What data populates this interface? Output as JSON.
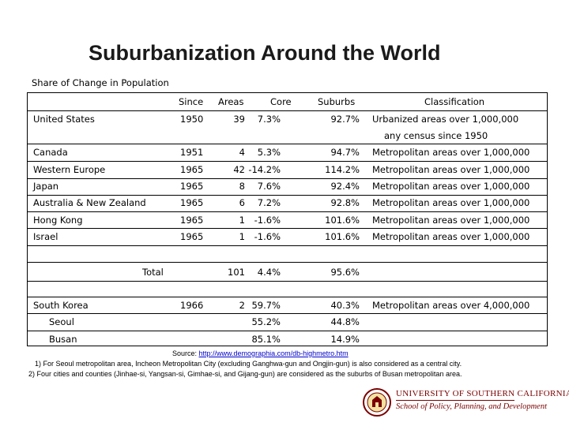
{
  "title": "Suburbanization Around the World",
  "subtitle": "Share of Change in Population",
  "columns": [
    "Since",
    "Areas",
    "Core",
    "Suburbs",
    "Classification"
  ],
  "rows": [
    {
      "country": "United States",
      "since": "1950",
      "areas": "39",
      "core": "7.3%",
      "suburbs": "92.7%",
      "classification": "Urbanized areas over 1,000,000",
      "classification_line2": "any census since 1950"
    },
    {
      "country": "Canada",
      "since": "1951",
      "areas": "4",
      "core": "5.3%",
      "suburbs": "94.7%",
      "classification": "Metropolitan areas over 1,000,000"
    },
    {
      "country": "Western Europe",
      "since": "1965",
      "areas": "42",
      "core": "-14.2%",
      "suburbs": "114.2%",
      "classification": "Metropolitan areas over 1,000,000"
    },
    {
      "country": "Japan",
      "since": "1965",
      "areas": "8",
      "core": "7.6%",
      "suburbs": "92.4%",
      "classification": "Metropolitan areas over 1,000,000"
    },
    {
      "country": "Australia & New Zealand",
      "since": "1965",
      "areas": "6",
      "core": "7.2%",
      "suburbs": "92.8%",
      "classification": "Metropolitan areas over 1,000,000"
    },
    {
      "country": "Hong Kong",
      "since": "1965",
      "areas": "1",
      "core": "-1.6%",
      "suburbs": "101.6%",
      "classification": "Metropolitan areas over 1,000,000"
    },
    {
      "country": "Israel",
      "since": "1965",
      "areas": "1",
      "core": "-1.6%",
      "suburbs": "101.6%",
      "classification": "Metropolitan areas over 1,000,000"
    }
  ],
  "total": {
    "label": "Total",
    "areas": "101",
    "core": "4.4%",
    "suburbs": "95.6%"
  },
  "korea": {
    "country": "South Korea",
    "since": "1966",
    "areas": "2",
    "core": "59.7%",
    "suburbs": "40.3%",
    "classification": "Metropolitan areas over 4,000,000",
    "sub": [
      {
        "name": "Seoul",
        "core": "55.2%",
        "suburbs": "44.8%"
      },
      {
        "name": "Busan",
        "core": "85.1%",
        "suburbs": "14.9%"
      }
    ]
  },
  "footer": {
    "source_prefix": "Source: ",
    "source_url": "http://www.demographia.com/db-highmetro.htm",
    "note1": "1) For Seoul metropolitan area, Incheon Metropolitan City (excluding Ganghwa-gun and Ongjin-gun) is also considered as a central city.",
    "note2": "2) Four cities and counties (Jinhae-si, Yangsan-si, Gimhae-si, and Gijang-gun) are considered as the suburbs of Busan metropolitan area."
  },
  "logo": {
    "line1": "UNIVERSITY OF SOUTHERN CALIFORNIA",
    "line2": "School of Policy, Planning, and Development",
    "colors": {
      "primary": "#7a0000",
      "secondary": "#c8a000"
    }
  }
}
